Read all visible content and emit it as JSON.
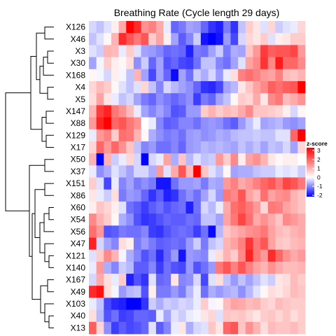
{
  "chart_data": {
    "type": "heatmap",
    "title": "Breathing Rate (Cycle length 29 days)",
    "rows": [
      "X126",
      "X46",
      "X3",
      "X30",
      "X168",
      "X4",
      "X5",
      "X147",
      "X88",
      "X129",
      "X17",
      "X50",
      "X37",
      "X151",
      "X86",
      "X60",
      "X54",
      "X56",
      "X47",
      "X121",
      "X140",
      "X167",
      "X49",
      "X103",
      "X40",
      "X13"
    ],
    "n_cols": 29,
    "legend": {
      "title": "z-score",
      "ticks": [
        3,
        2,
        1,
        0,
        -1,
        -2
      ],
      "colors": {
        "low": "#0000ff",
        "mid": "#ffffff",
        "high": "#ff0000"
      }
    },
    "dendrogram": {
      "side": "left",
      "merges": [
        {
          "left": "X3",
          "right": "X30",
          "height": 0.25
        },
        {
          "left": "X4",
          "right": "X5",
          "height": 0.3
        },
        {
          "left": "X147",
          "right": "X88",
          "height": 0.3
        },
        {
          "left": "X129",
          "right": "X17",
          "height": 0.3
        },
        {
          "left": "X50",
          "right": "X37",
          "height": 0.5
        },
        {
          "left": "X60",
          "right": "X54",
          "height": 0.2
        },
        {
          "left": "X121",
          "right": "X140",
          "height": 0.2
        },
        {
          "left": "X167",
          "right": "X49",
          "height": 0.3
        },
        {
          "left": "X40",
          "right": "X13",
          "height": 0.2
        },
        {
          "left": "X126",
          "right": "X46",
          "height": 0.55
        },
        {
          "left": "X151",
          "right": "X86",
          "height": 0.5
        },
        {
          "left": "X47",
          "right": "X121,X140",
          "height": 0.5
        },
        {
          "left": "X103",
          "right": "X40,X13",
          "height": 0.5
        },
        {
          "left": "X3,X30",
          "right": "X168",
          "height": 0.65
        },
        {
          "left": "X60,X54",
          "right": "X56",
          "height": 0.6
        },
        {
          "left": "X3,X30,X168",
          "right": "X4,X5",
          "height": 0.85
        },
        {
          "left": "X147,X88",
          "right": "X129,X17",
          "height": 0.7
        },
        {
          "left": "X126,X46",
          "right": "X3..X5",
          "height": 1.0
        },
        {
          "left": "X60..X56",
          "right": "X47..X140",
          "height": 0.9
        },
        {
          "left": "X167,X49",
          "right": "X103..X13",
          "height": 0.8
        },
        {
          "left": "X126..X5",
          "right": "X147..X17",
          "height": 1.3
        },
        {
          "left": "X151,X86",
          "right": "X60..X140",
          "height": 1.1
        },
        {
          "left": "X151..X140",
          "right": "X167..X13",
          "height": 1.2
        },
        {
          "left": "X50,X37",
          "right": "X151..X13",
          "height": 1.4
        },
        {
          "left": "X126..X17",
          "right": "X50..X13",
          "height": 2.2
        }
      ]
    },
    "values": [
      [
        -0.4,
        -0.6,
        -0.3,
        0.2,
        1.0,
        3.0,
        2.5,
        1.3,
        1.5,
        1.0,
        -0.2,
        -1.5,
        -1.3,
        -0.9,
        -1.0,
        -1.5,
        -2.0,
        -2.2,
        -1.3,
        -2.0,
        -0.6,
        0.6,
        0.3,
        -0.3,
        0.5,
        -0.5,
        -0.3,
        -0.2,
        0.5
      ],
      [
        -0.6,
        -0.3,
        0.1,
        0.9,
        2.5,
        2.0,
        1.6,
        2.0,
        0.6,
        1.1,
        0.2,
        -0.9,
        -1.6,
        -1.2,
        -0.5,
        -2.3,
        -2.8,
        -2.3,
        -1.0,
        -1.8,
        -0.4,
        0.5,
        0.3,
        0.6,
        -0.3,
        0.2,
        0.3,
        0.6,
        0.6
      ],
      [
        -0.3,
        -0.5,
        0.9,
        0.8,
        -0.2,
        0.6,
        -0.3,
        -0.9,
        -1.0,
        -1.2,
        -1.5,
        -1.4,
        -1.5,
        -2.2,
        -1.3,
        -1.4,
        -0.9,
        -0.5,
        -1.3,
        -0.8,
        -0.9,
        0.7,
        1.2,
        2.3,
        1.9,
        2.0,
        2.0,
        2.2,
        1.2
      ],
      [
        -0.9,
        -0.1,
        0.6,
        0.2,
        0.1,
        0.4,
        -1.1,
        -0.5,
        -1.5,
        -0.9,
        -1.7,
        -1.5,
        -1.8,
        -1.9,
        -1.4,
        -0.6,
        -0.6,
        -1.2,
        -1.4,
        -0.9,
        -0.3,
        1.1,
        1.4,
        2.4,
        1.4,
        2.7,
        1.8,
        1.8,
        1.4
      ],
      [
        0.1,
        -0.1,
        -0.4,
        0.2,
        -0.1,
        -0.6,
        0.9,
        -0.9,
        -1.8,
        -0.9,
        -1.5,
        -2.4,
        -0.9,
        -1.4,
        -0.5,
        -0.8,
        -0.4,
        -1.0,
        -0.2,
        0.4,
        1.5,
        1.7,
        1.5,
        1.2,
        1.1,
        1.5,
        0.8,
        0.7,
        0.9
      ],
      [
        0.5,
        0.8,
        0.6,
        0.1,
        -0.3,
        -0.6,
        -0.3,
        0.5,
        -0.6,
        -1.2,
        -0.4,
        -0.7,
        -0.9,
        -1.1,
        -1.5,
        -2.0,
        -2.1,
        -1.8,
        -0.9,
        -0.7,
        0.3,
        0.7,
        1.1,
        1.4,
        1.9,
        1.7,
        1.9,
        2.0,
        3.0
      ],
      [
        0.4,
        1.1,
        0.3,
        -0.2,
        -0.6,
        -0.4,
        -0.9,
        -1.3,
        -1.5,
        -1.1,
        -1.3,
        -1.5,
        -1.3,
        -1.1,
        -1.9,
        -1.3,
        -1.5,
        -0.9,
        -0.6,
        0.1,
        0.6,
        0.5,
        1.0,
        0.3,
        1.4,
        1.6,
        0.8,
        1.0,
        1.3
      ],
      [
        0.9,
        2.3,
        2.6,
        1.6,
        1.3,
        0.8,
        -0.2,
        -0.9,
        -1.2,
        -0.9,
        -1.2,
        -1.7,
        -1.6,
        -1.0,
        -1.0,
        0.6,
        0.9,
        0.6,
        0.8,
        0.7,
        1.0,
        1.4,
        0.7,
        0.7,
        0.6,
        0.5,
        0.2,
        -0.4,
        0.1
      ],
      [
        1.2,
        2.6,
        3.0,
        1.8,
        2.0,
        1.6,
        1.3,
        0.0,
        -0.2,
        -1.2,
        -1.6,
        -1.5,
        -1.2,
        -1.2,
        -1.4,
        -1.1,
        -1.0,
        -1.1,
        -1.4,
        -1.6,
        -1.0,
        -0.6,
        -0.2,
        -0.9,
        -0.8,
        -0.7,
        -1.0,
        -1.1,
        -0.9
      ],
      [
        -0.2,
        1.2,
        1.5,
        0.6,
        1.7,
        1.6,
        0.9,
        0.1,
        -0.8,
        -1.1,
        -1.3,
        -1.2,
        -1.4,
        -1.0,
        -0.9,
        -1.1,
        -1.0,
        -0.8,
        -0.9,
        -0.7,
        -0.6,
        -0.6,
        -0.5,
        -0.6,
        -0.6,
        -0.3,
        -0.3,
        1.8,
        3.0
      ],
      [
        0.5,
        1.8,
        1.2,
        1.8,
        1.3,
        0.7,
        -0.6,
        -1.2,
        -1.0,
        -1.4,
        -1.4,
        -1.2,
        -1.5,
        -1.0,
        -0.9,
        -0.7,
        -0.8,
        -0.7,
        -0.8,
        -0.9,
        -0.6,
        -0.8,
        -0.6,
        -0.9,
        -0.6,
        -0.7,
        -0.4,
        -0.9,
        0.5
      ],
      [
        0.9,
        -2.6,
        0.9,
        -0.5,
        -0.2,
        0.5,
        -0.4,
        -2.8,
        -0.4,
        -0.2,
        1.1,
        -0.8,
        0.7,
        -0.7,
        -0.3,
        -0.6,
        -0.5,
        1.2,
        0.6,
        1.4,
        0.2,
        1.1,
        1.3,
        0.9,
        0.3,
        0.1,
        0.2,
        0.2,
        0.0
      ],
      [
        -0.2,
        -1.1,
        -0.8,
        -0.3,
        -0.6,
        -0.9,
        -0.4,
        -0.4,
        -0.8,
        1.2,
        -0.3,
        1.0,
        2.0,
        0.8,
        3.0,
        0.7,
        -0.3,
        -0.6,
        0.1,
        -0.9,
        -0.8,
        -0.8,
        -0.6,
        -0.5,
        -0.5,
        -0.2,
        -0.3,
        -0.2,
        -0.5
      ],
      [
        0.6,
        -0.3,
        -1.8,
        -0.2,
        -1.2,
        -0.9,
        -1.3,
        -1.1,
        -1.3,
        -2.3,
        -2.3,
        -1.4,
        -1.0,
        -1.0,
        -0.9,
        -1.3,
        -0.8,
        -0.9,
        1.2,
        1.5,
        1.0,
        1.2,
        1.5,
        1.8,
        2.0,
        1.6,
        2.2,
        2.0,
        1.6
      ],
      [
        0.3,
        -0.2,
        -0.5,
        0.4,
        -1.3,
        -1.0,
        -1.1,
        -1.5,
        -2.0,
        -1.6,
        -2.2,
        -2.0,
        -1.4,
        -1.1,
        -1.4,
        -0.9,
        -0.4,
        -1.0,
        1.6,
        1.4,
        2.0,
        1.1,
        0.8,
        1.7,
        1.1,
        1.3,
        1.4,
        0.9,
        0.7
      ],
      [
        0.2,
        0.7,
        0.5,
        0.2,
        -0.3,
        -1.4,
        -1.6,
        -1.9,
        -1.6,
        -1.4,
        -1.7,
        -1.5,
        -1.4,
        -2.2,
        -1.4,
        -0.4,
        -0.7,
        -0.2,
        1.0,
        1.7,
        1.9,
        1.6,
        1.2,
        0.5,
        1.6,
        1.5,
        1.1,
        0.9,
        0.7
      ],
      [
        1.4,
        0.9,
        0.6,
        0.1,
        -0.8,
        -1.1,
        -1.7,
        -2.0,
        -1.9,
        -1.7,
        -1.5,
        -1.6,
        -1.6,
        -1.4,
        -1.5,
        -0.6,
        -0.6,
        -0.9,
        1.1,
        1.6,
        2.2,
        1.7,
        1.0,
        1.3,
        1.0,
        0.7,
        1.4,
        1.2,
        1.0
      ],
      [
        1.7,
        1.2,
        -1.7,
        -1.6,
        -1.3,
        -1.4,
        -1.4,
        -1.2,
        -1.9,
        -2.0,
        -1.7,
        -1.5,
        -1.4,
        -1.5,
        -1.9,
        -1.4,
        -2.4,
        -0.7,
        0.7,
        0.9,
        1.1,
        1.3,
        1.4,
        1.6,
        1.1,
        0.8,
        0.7,
        0.9,
        1.0
      ],
      [
        2.6,
        -0.4,
        -0.9,
        -1.2,
        0.4,
        0.2,
        -1.3,
        -1.0,
        -1.3,
        -1.6,
        -1.5,
        -1.4,
        -1.5,
        -1.0,
        -0.5,
        -1.3,
        -0.6,
        -0.4,
        0.9,
        1.1,
        1.5,
        2.4,
        1.6,
        2.0,
        1.1,
        0.7,
        0.6,
        0.8,
        0.9
      ],
      [
        -0.3,
        0.6,
        1.4,
        0.9,
        -0.1,
        -0.8,
        -1.2,
        -1.7,
        -1.4,
        -2.1,
        -1.5,
        -1.0,
        -2.3,
        -1.0,
        -1.1,
        -1.2,
        -0.2,
        0.4,
        0.9,
        0.6,
        1.4,
        2.6,
        1.6,
        1.2,
        2.5,
        1.8,
        1.3,
        1.0,
        1.2
      ],
      [
        -0.2,
        1.2,
        -0.8,
        -1.2,
        -0.5,
        -0.7,
        -1.6,
        -1.6,
        -1.2,
        -1.9,
        -1.4,
        -1.7,
        -1.8,
        -1.0,
        -1.7,
        -1.4,
        -1.0,
        1.6,
        2.0,
        1.5,
        2.0,
        1.5,
        1.1,
        0.9,
        1.3,
        1.0,
        0.8,
        0.8,
        0.9
      ],
      [
        -0.4,
        1.0,
        0.4,
        -0.2,
        0.6,
        -2.2,
        -1.7,
        -2.0,
        -0.3,
        -1.5,
        -1.4,
        0.3,
        -1.2,
        -1.1,
        -0.4,
        -1.8,
        -0.3,
        0.4,
        -0.6,
        -1.0,
        -0.6,
        -0.9,
        -0.6,
        -0.3,
        -0.5,
        0.3,
        0.4,
        0.8,
        0.6
      ],
      [
        2.5,
        2.8,
        0.4,
        -0.1,
        -1.0,
        -0.7,
        -0.6,
        -1.7,
        0.2,
        -1.3,
        -1.3,
        -1.0,
        -1.3,
        -0.7,
        -0.2,
        -1.4,
        -0.8,
        -1.0,
        -0.8,
        -0.7,
        -1.1,
        -0.7,
        -0.3,
        0.1,
        0.4,
        0.3,
        0.5,
        0.8,
        0.7
      ],
      [
        -0.2,
        -0.6,
        -1.8,
        -2.1,
        -2.2,
        -2.6,
        -2.5,
        -2.0,
        -0.5,
        -0.8,
        -0.5,
        -0.6,
        -0.4,
        -0.5,
        -0.2,
        0.6,
        -0.1,
        0.1,
        0.8,
        1.1,
        1.0,
        0.8,
        0.9,
        0.6,
        0.5,
        0.8,
        0.7,
        0.6,
        0.6
      ],
      [
        0.4,
        -0.7,
        -1.7,
        -1.4,
        -1.9,
        -1.8,
        -1.5,
        -1.5,
        -1.6,
        -0.2,
        -0.9,
        -0.3,
        -0.5,
        -0.2,
        -0.1,
        0.3,
        0.5,
        -0.3,
        0.7,
        0.6,
        0.7,
        0.5,
        0.3,
        0.6,
        0.7,
        0.5,
        0.7,
        0.4,
        0.6
      ],
      [
        1.9,
        0.5,
        -1.1,
        -1.9,
        -1.6,
        -1.8,
        -1.7,
        -1.5,
        -0.3,
        -1.6,
        -1.2,
        -0.2,
        0.3,
        -0.8,
        -0.4,
        -0.3,
        0.7,
        0.3,
        1.8,
        2.0,
        0.7,
        1.3,
        0.9,
        0.4,
        0.8,
        0.7,
        0.7,
        0.8,
        0.6
      ]
    ]
  }
}
